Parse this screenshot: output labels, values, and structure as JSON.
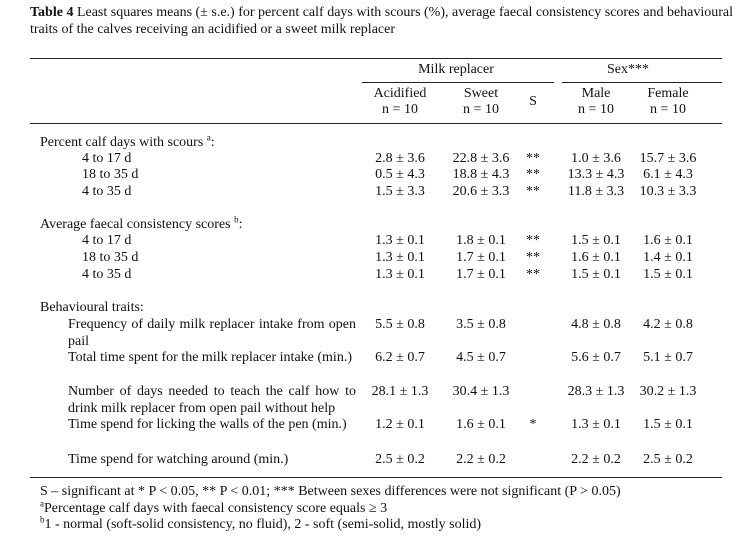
{
  "caption": {
    "label": "Table 4",
    "text": "Least squares means (± s.e.) for percent calf days with scours (%), average faecal consistency scores and behavioural traits of the calves receiving an acidified or a sweet milk replacer"
  },
  "header": {
    "group1": "Milk replacer",
    "group2": "Sex***",
    "columns": [
      {
        "name": "Acidified",
        "n": "n = 10"
      },
      {
        "name": "Sweet",
        "n": "n = 10"
      },
      {
        "name": "S"
      },
      {
        "name": "Male",
        "n": "n = 10"
      },
      {
        "name": "Female",
        "n": "n = 10"
      }
    ]
  },
  "sections": [
    {
      "label": "Percent calf days with scours ",
      "note": "a",
      "after": ":",
      "rows": [
        {
          "label": "4 to 17 d",
          "values": [
            "2.8 ± 3.6",
            "22.8 ± 3.6",
            "1.0 ± 3.6",
            "15.7 ± 3.6"
          ],
          "s": "**"
        },
        {
          "label": "18 to 35 d",
          "values": [
            "0.5 ± 4.3",
            "18.8 ± 4.3",
            "13.3 ± 4.3",
            "6.1 ± 4.3"
          ],
          "s": "**"
        },
        {
          "label": "4 to 35 d",
          "values": [
            "1.5 ± 3.3",
            "20.6 ± 3.3",
            "11.8 ± 3.3",
            "10.3 ± 3.3"
          ],
          "s": "**"
        }
      ]
    },
    {
      "label": "Average faecal consistency scores ",
      "note": "b",
      "after": ":",
      "rows": [
        {
          "label": "4 to 17 d",
          "values": [
            "1.3 ± 0.1",
            "1.8 ± 0.1",
            "1.5 ± 0.1",
            "1.6 ± 0.1"
          ],
          "s": "**"
        },
        {
          "label": "18 to 35 d",
          "values": [
            "1.3 ± 0.1",
            "1.7 ± 0.1",
            "1.6 ± 0.1",
            "1.4 ± 0.1"
          ],
          "s": "**"
        },
        {
          "label": "4 to 35 d",
          "values": [
            "1.3 ± 0.1",
            "1.7 ± 0.1",
            "1.5 ± 0.1",
            "1.5 ± 0.1"
          ],
          "s": "**"
        }
      ]
    },
    {
      "label": "Behavioural traits:",
      "rows": [
        {
          "label": "Frequency of daily milk replacer intake from open pail",
          "values": [
            "5.5 ± 0.8",
            "3.5 ± 0.8",
            "4.8 ± 0.8",
            "4.2 ± 0.8"
          ]
        },
        {
          "label": "Total time spent for the milk replacer intake (min.)",
          "values": [
            "6.2 ± 0.7",
            "4.5 ± 0.7",
            "5.6 ± 0.7",
            "5.1 ± 0.7"
          ]
        },
        {
          "label": "Number of days needed to teach the calf how to drink milk replacer from open pail without help",
          "values": [
            "28.1 ± 1.3",
            "30.4 ± 1.3",
            "28.3 ± 1.3",
            "30.2 ± 1.3"
          ]
        },
        {
          "label": "Time spend for licking the walls of the pen (min.)",
          "values": [
            "1.2 ± 0.1",
            "1.6 ± 0.1",
            "1.3 ± 0.1",
            "1.5 ± 0.1"
          ],
          "s": "*"
        },
        {
          "label": "Time spend for watching around (min.)",
          "values": [
            "2.5 ± 0.2",
            "2.2 ± 0.2",
            "2.2 ± 0.2",
            "2.5 ± 0.2"
          ]
        }
      ]
    }
  ],
  "footnotes": [
    {
      "text": "S – significant at * P < 0.05, ** P < 0.01; *** Between sexes differences were not significant (P > 0.05)"
    },
    {
      "mark": "a",
      "text": "Percentage calf days with faecal consistency score equals ≥ 3"
    },
    {
      "mark": "b",
      "text": "1 - normal (soft-solid consistency, no fluid), 2 - soft (semi-solid, mostly solid)"
    }
  ]
}
